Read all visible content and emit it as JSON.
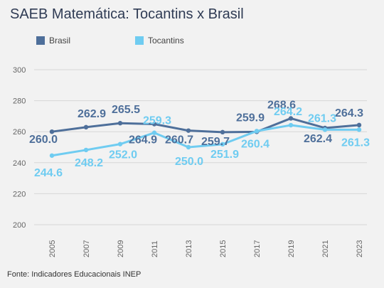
{
  "title": "SAEB Matemática: Tocantins x Brasil",
  "footer": "Fonte: Indicadores Educacionais INEP",
  "chart_data": {
    "type": "line",
    "categories": [
      "2005",
      "2007",
      "2009",
      "2011",
      "2013",
      "2015",
      "2017",
      "2019",
      "2021",
      "2023"
    ],
    "series": [
      {
        "name": "Brasil",
        "color": "#4e6f9a",
        "values": [
          260.0,
          262.9,
          265.5,
          264.9,
          260.7,
          259.7,
          259.9,
          268.6,
          262.4,
          264.3
        ]
      },
      {
        "name": "Tocantins",
        "color": "#6fccf1",
        "values": [
          244.6,
          248.2,
          252.0,
          259.3,
          250.0,
          251.9,
          260.4,
          264.2,
          261.3,
          261.3
        ]
      }
    ],
    "ylim": [
      200,
      300
    ],
    "yticks": [
      200,
      220,
      240,
      260,
      280,
      300
    ],
    "grid": true,
    "legend": "top-left"
  }
}
